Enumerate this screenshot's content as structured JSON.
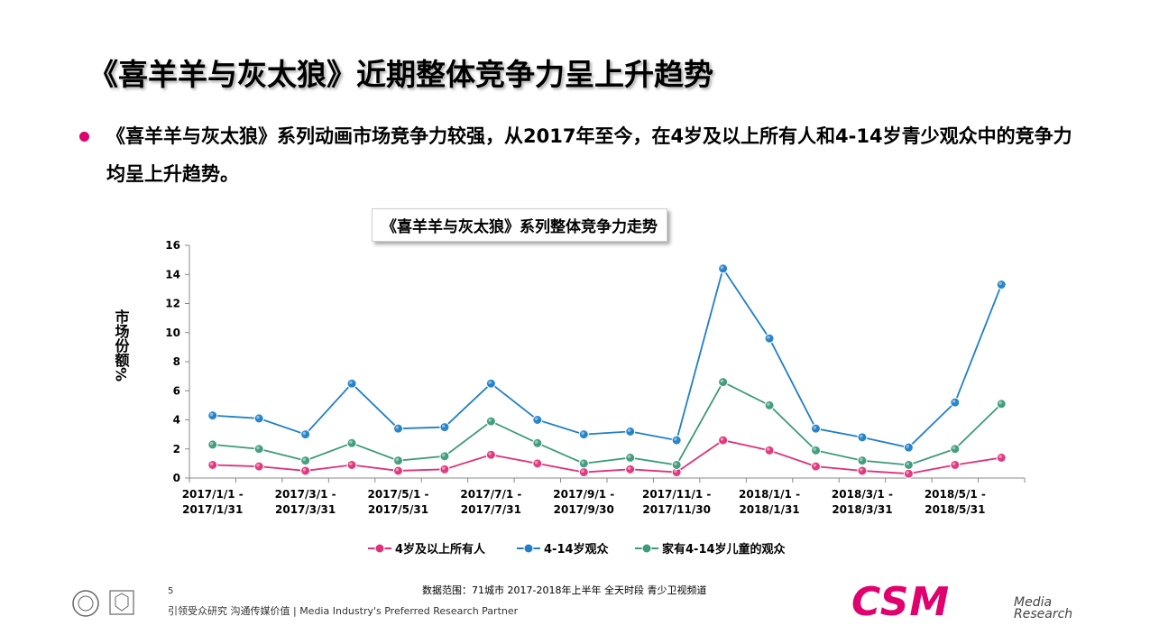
{
  "slide": {
    "title": "《喜羊羊与灰太狼》近期整体竞争力呈上升趋势",
    "bullet": "《喜羊羊与灰太狼》系列动画市场竞争力较强，从2017年至今，在4岁及以上所有人和4-14岁青少观众中的竞争力均呈上升趋势。",
    "accent_color": "#e0006e"
  },
  "chart_data": {
    "type": "line",
    "title": "《喜羊羊与灰太狼》系列整体竞争力走势",
    "ylabel": "市场份额%",
    "ylim": [
      0,
      16
    ],
    "yticks": [
      0,
      2,
      4,
      6,
      8,
      10,
      12,
      14,
      16
    ],
    "x_tick_labels": [
      [
        "2017/1/1 -",
        "2017/1/31"
      ],
      [
        "2017/3/1 -",
        "2017/3/31"
      ],
      [
        "2017/5/1 -",
        "2017/5/31"
      ],
      [
        "2017/7/1 -",
        "2017/7/31"
      ],
      [
        "2017/9/1 -",
        "2017/9/30"
      ],
      [
        "2017/11/1 -",
        "2017/11/30"
      ],
      [
        "2018/1/1 -",
        "2018/1/31"
      ],
      [
        "2018/3/1 -",
        "2018/3/31"
      ],
      [
        "2018/5/1 -",
        "2018/5/31"
      ]
    ],
    "categories": [
      "2017-01",
      "2017-02",
      "2017-03",
      "2017-04",
      "2017-05",
      "2017-06",
      "2017-07",
      "2017-08",
      "2017-09",
      "2017-10",
      "2017-11",
      "2017-12",
      "2018-01",
      "2018-02",
      "2018-03",
      "2018-04",
      "2018-05",
      "2018-06"
    ],
    "series": [
      {
        "name": "4岁及以上所有人",
        "color": "#e0317a",
        "values": [
          0.9,
          0.8,
          0.5,
          0.9,
          0.5,
          0.6,
          1.6,
          1.0,
          0.4,
          0.6,
          0.4,
          2.6,
          1.9,
          0.8,
          0.5,
          0.3,
          0.9,
          1.4
        ]
      },
      {
        "name": "4-14岁观众",
        "color": "#1f7fc8",
        "values": [
          4.3,
          4.1,
          3.0,
          6.5,
          3.4,
          3.5,
          6.5,
          4.0,
          3.0,
          3.2,
          2.6,
          14.4,
          9.6,
          3.4,
          2.8,
          2.1,
          5.2,
          13.3
        ]
      },
      {
        "name": "家有4-14岁儿童的观众",
        "color": "#3c9a7a",
        "values": [
          2.3,
          2.0,
          1.2,
          2.4,
          1.2,
          1.5,
          3.9,
          2.4,
          1.0,
          1.4,
          0.9,
          6.6,
          5.0,
          1.9,
          1.2,
          0.9,
          2.0,
          5.1
        ]
      }
    ],
    "grid": false,
    "legend": "bottom"
  },
  "footer": {
    "page_number": "5",
    "tagline": "引领受众研究  沟通传媒价值 | Media  Industry's  Preferred  Research  Partner",
    "data_note": "数据范围：71城市 2017-2018年上半年 全天时段 青少卫视频道",
    "logo_text": "CSM",
    "logo_sub_line1": "Media",
    "logo_sub_line2": "Research"
  }
}
